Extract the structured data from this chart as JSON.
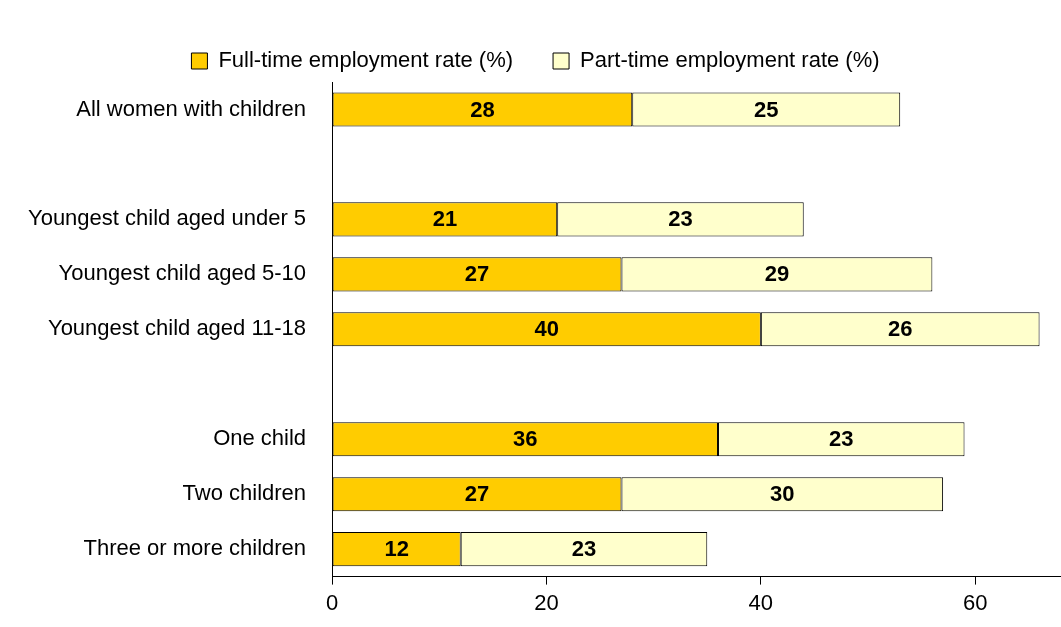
{
  "chart_data": {
    "type": "bar",
    "orientation": "horizontal",
    "stacked": true,
    "categories": [
      "All women with children",
      null,
      "Youngest child aged under 5",
      "Youngest child aged 5-10",
      "Youngest child aged 11-18",
      null,
      "One child",
      "Two children",
      "Three or more children"
    ],
    "series": [
      {
        "name": "Full-time employment rate (%)",
        "color": "#ffcc00",
        "values": [
          28,
          null,
          21,
          27,
          40,
          null,
          36,
          27,
          12
        ]
      },
      {
        "name": "Part-time employment rate (%)",
        "color": "#ffffcc",
        "values": [
          25,
          null,
          23,
          29,
          26,
          null,
          23,
          30,
          23
        ]
      }
    ],
    "xlim": [
      0,
      68
    ],
    "xticks": [
      0,
      20,
      40,
      60
    ],
    "grid": false,
    "legend": "top",
    "data_labels": true
  }
}
